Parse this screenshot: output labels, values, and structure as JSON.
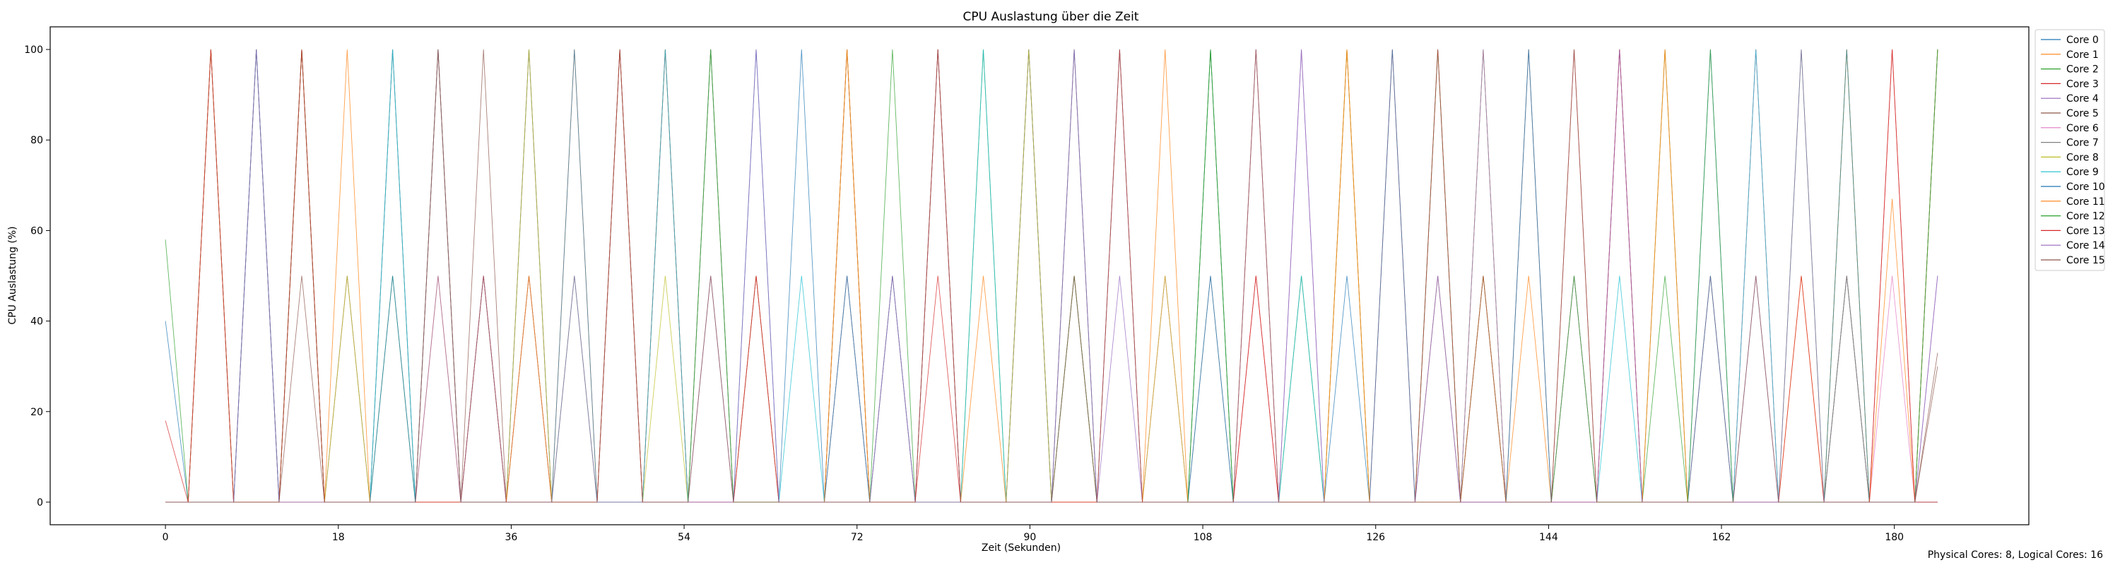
{
  "chart_data": {
    "type": "line",
    "title": "CPU Auslastung über die Zeit",
    "xlabel": "Zeit (Sekunden)",
    "ylabel": "CPU Auslastung (%)",
    "xlim": [
      -12,
      194
    ],
    "ylim": [
      -5,
      105
    ],
    "xticks": [
      0,
      18,
      36,
      54,
      72,
      90,
      108,
      126,
      144,
      162,
      180
    ],
    "yticks": [
      0,
      20,
      40,
      60,
      80,
      100
    ],
    "grid": false,
    "legend_position": "outside-right-top",
    "sample_interval_s": 0.5,
    "duration_s": 184.5,
    "series": [
      {
        "name": "Core 0",
        "color": "#1f77b4",
        "values": [
          40,
          0,
          100,
          0,
          0,
          100,
          0,
          50,
          0,
          0,
          100,
          0,
          0,
          0,
          100,
          0,
          50,
          0,
          0,
          100,
          0,
          0,
          0,
          100,
          0,
          0,
          50,
          0,
          0,
          100,
          0,
          0,
          0,
          0,
          100,
          0,
          0,
          50,
          0,
          100
        ]
      },
      {
        "name": "Core 1",
        "color": "#ff7f0e",
        "values": [
          0,
          0,
          0,
          100,
          0,
          0,
          50,
          0,
          0,
          100,
          0,
          0,
          0,
          50,
          0,
          100,
          0,
          0,
          0,
          0,
          100,
          0,
          50,
          0,
          0,
          0,
          100,
          0,
          0,
          0,
          50,
          0,
          100,
          0,
          0,
          0,
          0,
          100,
          0,
          0
        ]
      },
      {
        "name": "Core 2",
        "color": "#2ca02c",
        "values": [
          58,
          0,
          0,
          100,
          0,
          50,
          0,
          0,
          100,
          0,
          0,
          0,
          100,
          0,
          0,
          50,
          0,
          0,
          100,
          0,
          0,
          0,
          0,
          100,
          0,
          50,
          0,
          0,
          0,
          100,
          0,
          0,
          0,
          50,
          0,
          0,
          100,
          0,
          0,
          100
        ]
      },
      {
        "name": "Core 3",
        "color": "#d62728",
        "values": [
          18,
          100,
          0,
          100,
          0,
          0,
          100,
          0,
          50,
          0,
          0,
          100,
          0,
          0,
          0,
          100,
          0,
          50,
          0,
          0,
          0,
          100,
          0,
          0,
          50,
          0,
          0,
          100,
          0,
          0,
          0,
          100,
          0,
          0,
          50,
          0,
          0,
          0,
          100,
          0
        ]
      },
      {
        "name": "Core 4",
        "color": "#9467bd",
        "values": [
          0,
          0,
          100,
          0,
          0,
          0,
          50,
          0,
          100,
          0,
          0,
          0,
          50,
          0,
          0,
          100,
          0,
          0,
          0,
          100,
          0,
          50,
          0,
          0,
          0,
          100,
          0,
          0,
          0,
          50,
          0,
          0,
          100,
          0,
          0,
          50,
          0,
          0,
          0,
          50
        ]
      },
      {
        "name": "Core 5",
        "color": "#8c564b",
        "values": [
          0,
          100,
          0,
          0,
          50,
          0,
          0,
          100,
          0,
          0,
          0,
          100,
          0,
          50,
          0,
          0,
          0,
          100,
          0,
          0,
          50,
          0,
          0,
          0,
          100,
          0,
          0,
          0,
          50,
          0,
          100,
          0,
          0,
          0,
          0,
          100,
          0,
          50,
          0,
          30
        ]
      },
      {
        "name": "Core 6",
        "color": "#e377c2",
        "values": [
          0,
          0,
          0,
          100,
          0,
          0,
          0,
          50,
          0,
          0,
          100,
          0,
          0,
          0,
          0,
          50,
          0,
          100,
          0,
          0,
          0,
          0,
          50,
          0,
          100,
          0,
          0,
          0,
          0,
          100,
          0,
          50,
          0,
          0,
          0,
          100,
          0,
          0,
          50,
          0
        ]
      },
      {
        "name": "Core 7",
        "color": "#7f7f7f",
        "values": [
          0,
          100,
          0,
          0,
          0,
          100,
          0,
          0,
          50,
          0,
          0,
          0,
          100,
          0,
          0,
          0,
          50,
          0,
          0,
          100,
          0,
          0,
          0,
          50,
          0,
          0,
          100,
          0,
          0,
          0,
          0,
          50,
          0,
          100,
          0,
          0,
          0,
          50,
          0,
          0
        ]
      },
      {
        "name": "Core 8",
        "color": "#bcbd22",
        "values": [
          0,
          0,
          100,
          0,
          50,
          0,
          0,
          0,
          100,
          0,
          0,
          50,
          0,
          0,
          0,
          100,
          0,
          0,
          0,
          100,
          0,
          0,
          50,
          0,
          0,
          0,
          100,
          0,
          0,
          50,
          0,
          0,
          0,
          100,
          0,
          0,
          0,
          100,
          0,
          0
        ]
      },
      {
        "name": "Core 9",
        "color": "#17becf",
        "values": [
          0,
          100,
          0,
          0,
          0,
          100,
          0,
          50,
          0,
          0,
          0,
          100,
          0,
          0,
          50,
          0,
          0,
          0,
          100,
          0,
          0,
          100,
          0,
          0,
          0,
          50,
          0,
          0,
          100,
          0,
          0,
          0,
          50,
          0,
          0,
          100,
          0,
          0,
          0,
          100
        ]
      },
      {
        "name": "Core 10",
        "color": "#1f77b4",
        "values": [
          0,
          0,
          100,
          0,
          0,
          50,
          0,
          0,
          0,
          100,
          0,
          0,
          0,
          100,
          0,
          50,
          0,
          0,
          0,
          0,
          100,
          0,
          0,
          50,
          0,
          0,
          0,
          100,
          0,
          0,
          100,
          0,
          0,
          0,
          50,
          0,
          0,
          100,
          0,
          0
        ]
      },
      {
        "name": "Core 11",
        "color": "#ff7f0e",
        "values": [
          0,
          100,
          0,
          0,
          100,
          0,
          0,
          0,
          50,
          0,
          100,
          0,
          0,
          0,
          0,
          100,
          0,
          0,
          50,
          0,
          0,
          0,
          100,
          0,
          0,
          0,
          100,
          0,
          0,
          50,
          0,
          0,
          0,
          100,
          0,
          0,
          50,
          0,
          67,
          100
        ]
      },
      {
        "name": "Core 12",
        "color": "#2ca02c",
        "values": [
          0,
          0,
          0,
          100,
          0,
          0,
          100,
          0,
          0,
          50,
          0,
          0,
          100,
          0,
          0,
          0,
          100,
          0,
          0,
          0,
          50,
          0,
          0,
          100,
          0,
          0,
          0,
          0,
          100,
          0,
          0,
          50,
          0,
          0,
          100,
          0,
          0,
          0,
          0,
          100
        ]
      },
      {
        "name": "Core 13",
        "color": "#d62728",
        "values": [
          0,
          100,
          0,
          100,
          0,
          0,
          0,
          50,
          0,
          0,
          100,
          0,
          0,
          50,
          0,
          0,
          0,
          100,
          0,
          0,
          0,
          100,
          0,
          0,
          50,
          0,
          0,
          0,
          100,
          0,
          0,
          0,
          100,
          0,
          0,
          0,
          50,
          0,
          100,
          0
        ]
      },
      {
        "name": "Core 14",
        "color": "#9467bd",
        "values": [
          0,
          0,
          100,
          0,
          0,
          0,
          100,
          0,
          0,
          50,
          0,
          0,
          0,
          100,
          0,
          0,
          50,
          0,
          0,
          0,
          100,
          0,
          0,
          0,
          0,
          100,
          0,
          0,
          50,
          0,
          0,
          0,
          100,
          0,
          0,
          0,
          100,
          0,
          0,
          50
        ]
      },
      {
        "name": "Core 15",
        "color": "#8c564b",
        "values": [
          0,
          0,
          0,
          50,
          0,
          0,
          100,
          0,
          0,
          0,
          100,
          0,
          50,
          0,
          0,
          0,
          0,
          100,
          0,
          0,
          50,
          0,
          0,
          0,
          100,
          0,
          0,
          0,
          0,
          50,
          0,
          100,
          0,
          0,
          0,
          50,
          0,
          0,
          0,
          33
        ]
      }
    ]
  },
  "footer": {
    "cores_info": "Physical Cores: 8, Logical Cores: 16"
  }
}
